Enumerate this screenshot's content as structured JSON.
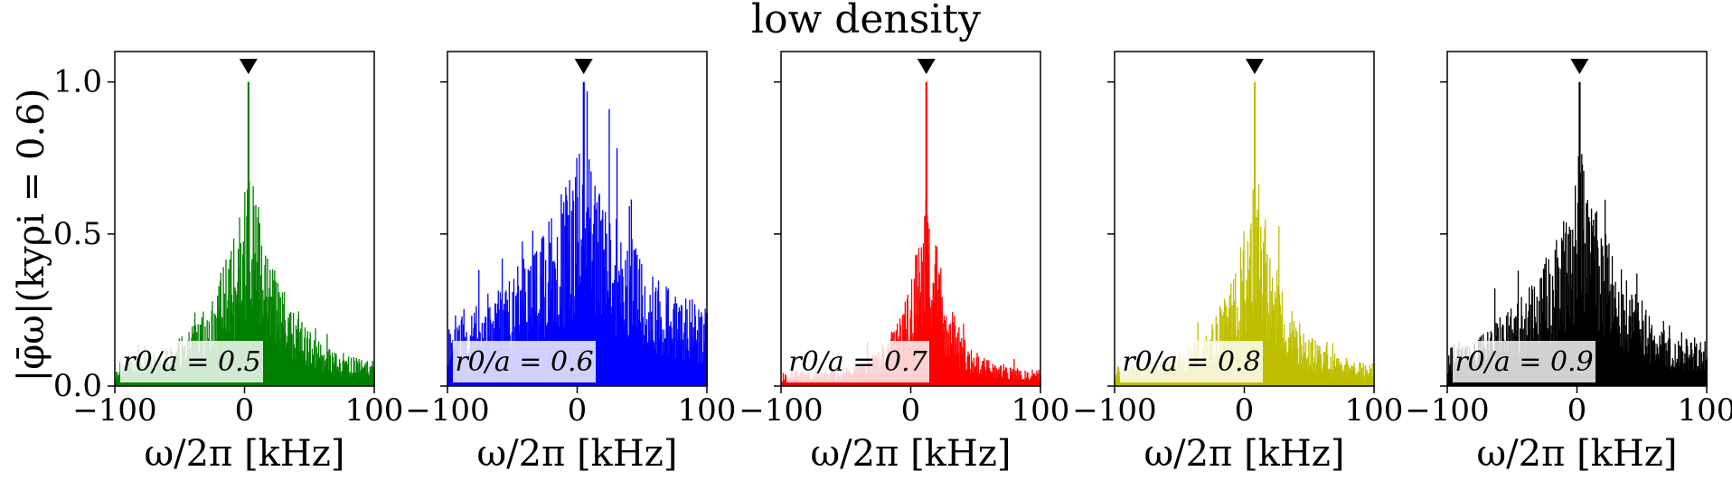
{
  "figure_title": "low density",
  "ylabel": "|φ̄ω|(kyρi = 0.6)",
  "chart_data": [
    {
      "type": "bar",
      "name": "panel-1",
      "label": "r0/a = 0.5",
      "color": "#008000",
      "peak": {
        "x": 3,
        "y": 1.0
      },
      "xlim": [
        -100,
        100
      ],
      "ylim": [
        0,
        1.1
      ],
      "xticks": [
        -100,
        0,
        100
      ],
      "yticks": [
        0.0,
        0.5,
        1.0
      ],
      "xlabel": "ω/2π [kHz]",
      "ylabel": "|φ̄ω|(kyρi = 0.6)",
      "width_param": 30,
      "noise_floor": 0.05
    },
    {
      "type": "bar",
      "name": "panel-2",
      "label": "r0/a = 0.6",
      "color": "#0000ff",
      "peak": {
        "x": 5,
        "y": 1.0
      },
      "xlim": [
        -100,
        100
      ],
      "ylim": [
        0,
        1.1
      ],
      "xticks": [
        -100,
        0,
        100
      ],
      "yticks": [],
      "xlabel": "ω/2π [kHz]",
      "ylabel": "",
      "width_param": 55,
      "noise_floor": 0.12
    },
    {
      "type": "bar",
      "name": "panel-3",
      "label": "r0/a = 0.7",
      "color": "#ff0000",
      "peak": {
        "x": 12,
        "y": 1.0
      },
      "xlim": [
        -100,
        100
      ],
      "ylim": [
        0,
        1.1
      ],
      "xticks": [
        -100,
        0,
        100
      ],
      "yticks": [],
      "xlabel": "ω/2π [kHz]",
      "ylabel": "",
      "width_param": 18,
      "noise_floor": 0.04
    },
    {
      "type": "bar",
      "name": "panel-4",
      "label": "r0/a = 0.8",
      "color": "#bfbf00",
      "peak": {
        "x": 8,
        "y": 1.0
      },
      "xlim": [
        -100,
        100
      ],
      "ylim": [
        0,
        1.1
      ],
      "xticks": [
        -100,
        0,
        100
      ],
      "yticks": [],
      "xlabel": "ω/2π [kHz]",
      "ylabel": "",
      "width_param": 25,
      "noise_floor": 0.05
    },
    {
      "type": "bar",
      "name": "panel-5",
      "label": "r0/a = 0.9",
      "color": "#000000",
      "peak": {
        "x": 2,
        "y": 1.0
      },
      "xlim": [
        -100,
        100
      ],
      "ylim": [
        0,
        1.1
      ],
      "xticks": [
        -100,
        0,
        100
      ],
      "yticks": [],
      "xlabel": "ω/2π [kHz]",
      "ylabel": "",
      "width_param": 40,
      "noise_floor": 0.08
    }
  ]
}
